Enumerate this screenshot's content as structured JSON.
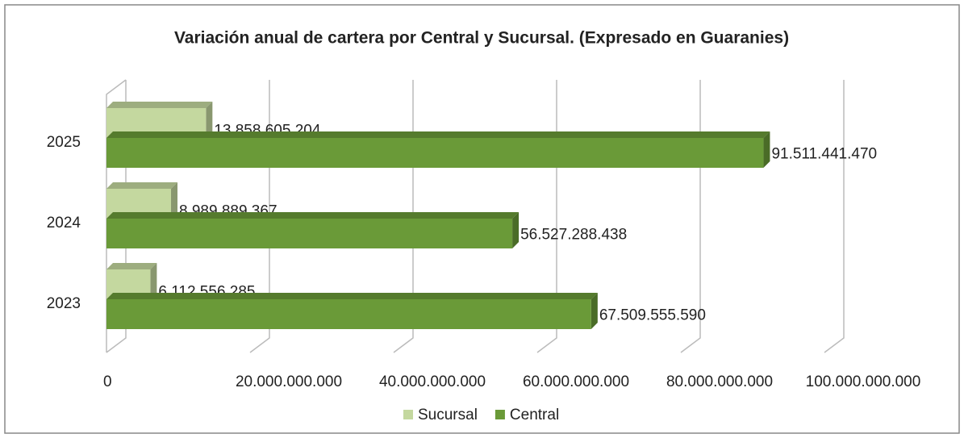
{
  "chart_data": {
    "type": "bar",
    "orientation": "horizontal",
    "three_d": true,
    "title": "Variación anual de cartera por Central y Sucursal. (Expresado en Guaranies)",
    "categories": [
      "2023",
      "2024",
      "2025"
    ],
    "series": [
      {
        "name": "Sucursal",
        "color": "#c4d89f",
        "values": [
          6112556285,
          8989889367,
          13858605204
        ],
        "value_labels": [
          "6.112.556.285",
          "8.989.889.367",
          "13.858.605.204"
        ]
      },
      {
        "name": "Central",
        "color": "#6a9a38",
        "values": [
          67509555590,
          56527288438,
          91511441470
        ],
        "value_labels": [
          "67.509.555.590",
          "56.527.288.438",
          "91.511.441.470"
        ]
      }
    ],
    "xlim": [
      0,
      100000000000
    ],
    "xticks": [
      0,
      {
        "value": 20000000000,
        "label": "20.000.000.000"
      },
      {
        "value": 40000000000,
        "label": "40.000.000.000"
      },
      {
        "value": 60000000000,
        "label": "60.000.000.000"
      },
      {
        "value": 80000000000,
        "label": "80.000.000.000"
      },
      {
        "value": 100000000000,
        "label": "100.000.000.000"
      }
    ],
    "grid": true,
    "legend": "bottom"
  }
}
